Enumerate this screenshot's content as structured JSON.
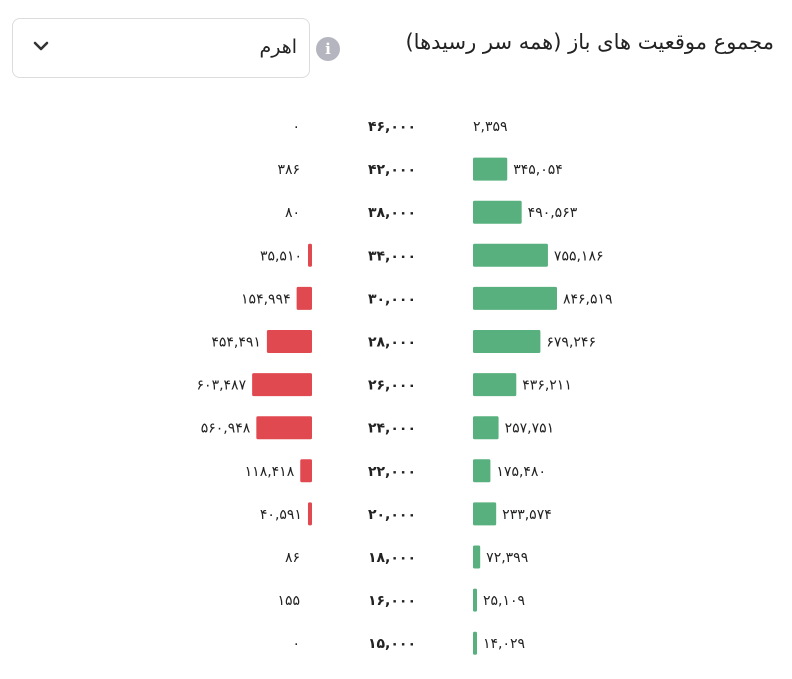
{
  "header": {
    "title": "مجموع موقعیت های باز (همه سر رسیدها)",
    "info_icon": "info-icon",
    "select": {
      "value": "اهرم",
      "icon": "chevron-down-icon"
    }
  },
  "colors": {
    "call": "#57b07d",
    "put": "#e0494f"
  },
  "chart_data": {
    "type": "bar",
    "orientation": "horizontal-butterfly",
    "categories": [
      "۴۶,۰۰۰",
      "۴۲,۰۰۰",
      "۳۸,۰۰۰",
      "۳۴,۰۰۰",
      "۳۰,۰۰۰",
      "۲۸,۰۰۰",
      "۲۶,۰۰۰",
      "۲۴,۰۰۰",
      "۲۲,۰۰۰",
      "۲۰,۰۰۰",
      "۱۸,۰۰۰",
      "۱۶,۰۰۰",
      "۱۵,۰۰۰"
    ],
    "series": [
      {
        "side": "right",
        "color": "#57b07d",
        "values": [
          2359,
          345054,
          490563,
          755186,
          846519,
          679246,
          436211,
          257751,
          175480,
          233574,
          72399,
          25109,
          14029
        ],
        "labels": [
          "۲,۳۵۹",
          "۳۴۵,۰۵۴",
          "۴۹۰,۵۶۳",
          "۷۵۵,۱۸۶",
          "۸۴۶,۵۱۹",
          "۶۷۹,۲۴۶",
          "۴۳۶,۲۱۱",
          "۲۵۷,۷۵۱",
          "۱۷۵,۴۸۰",
          "۲۳۳,۵۷۴",
          "۷۲,۳۹۹",
          "۲۵,۱۰۹",
          "۱۴,۰۲۹"
        ]
      },
      {
        "side": "left",
        "color": "#e0494f",
        "values": [
          0,
          386,
          80,
          35510,
          154994,
          454491,
          603487,
          560948,
          118418,
          40591,
          86,
          155,
          0
        ],
        "labels": [
          "۰",
          "۳۸۶",
          "۸۰",
          "۳۵,۵۱۰",
          "۱۵۴,۹۹۴",
          "۴۵۴,۴۹۱",
          "۶۰۳,۴۸۷",
          "۵۶۰,۹۴۸",
          "۱۱۸,۴۱۸",
          "۴۰,۵۹۱",
          "۸۶",
          "۱۵۵",
          "۰"
        ]
      }
    ]
  }
}
